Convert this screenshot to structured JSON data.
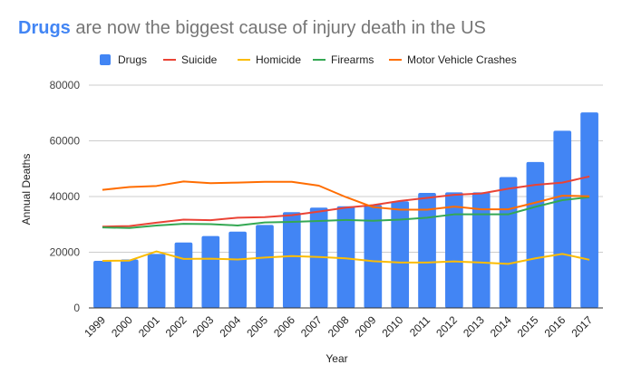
{
  "chart_data": {
    "type": "bar+line",
    "title_highlight": "Drugs",
    "title_rest": " are now the biggest cause of injury death in the US",
    "xlabel": "Year",
    "ylabel": "Annual Deaths",
    "ylim": [
      0,
      80000
    ],
    "yticks": [
      0,
      20000,
      40000,
      60000,
      80000
    ],
    "ytick_labels": [
      "0",
      "20000",
      "40000",
      "60000",
      "80000"
    ],
    "grid": true,
    "legend": "top",
    "categories": [
      "1999",
      "2000",
      "2001",
      "2002",
      "2003",
      "2004",
      "2005",
      "2006",
      "2007",
      "2008",
      "2009",
      "2010",
      "2011",
      "2012",
      "2013",
      "2014",
      "2015",
      "2016",
      "2017"
    ],
    "series": [
      {
        "name": "Drugs",
        "type": "bar",
        "color": "#4285f4",
        "values": [
          16900,
          17400,
          19400,
          23500,
          25800,
          27400,
          29800,
          34400,
          36000,
          36500,
          37000,
          38300,
          41300,
          41500,
          41500,
          47000,
          52400,
          63600,
          70200
        ]
      },
      {
        "name": "Suicide",
        "type": "line",
        "color": "#ea4335",
        "values": [
          29200,
          29400,
          30600,
          31700,
          31500,
          32400,
          32600,
          33300,
          34600,
          36000,
          36900,
          38400,
          39500,
          40600,
          41100,
          42800,
          44200,
          45000,
          47200
        ]
      },
      {
        "name": "Homicide",
        "type": "line",
        "color": "#fbbc04",
        "values": [
          16900,
          17000,
          20300,
          17600,
          17700,
          17400,
          18100,
          18600,
          18300,
          17800,
          16800,
          16300,
          16300,
          16700,
          16300,
          15800,
          17800,
          19400,
          17300
        ]
      },
      {
        "name": "Firearms",
        "type": "line",
        "color": "#34a853",
        "values": [
          28900,
          28700,
          29600,
          30200,
          30100,
          29600,
          30700,
          30900,
          31200,
          31600,
          31300,
          31700,
          32400,
          33600,
          33600,
          33600,
          36300,
          38700,
          39800
        ]
      },
      {
        "name": "Motor Vehicle Crashes",
        "type": "line",
        "color": "#ff6d01",
        "values": [
          42400,
          43400,
          43800,
          45400,
          44800,
          45000,
          45300,
          45300,
          43900,
          39800,
          36200,
          35300,
          35300,
          36400,
          35400,
          35400,
          37800,
          40300,
          40100
        ]
      }
    ]
  }
}
